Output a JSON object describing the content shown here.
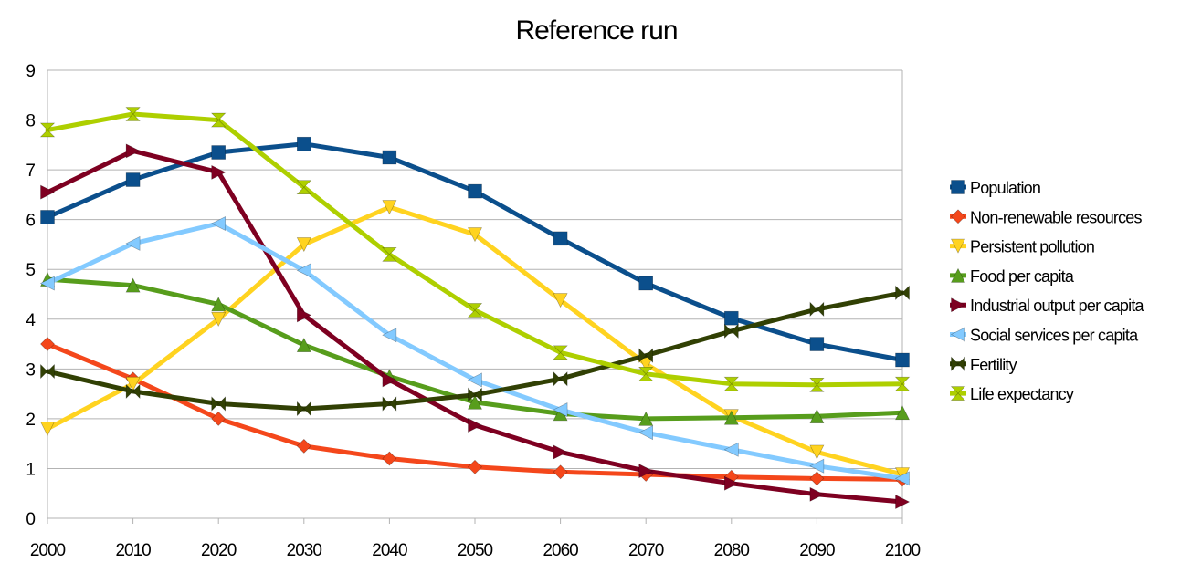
{
  "chart_data": {
    "type": "line",
    "title": "Reference run",
    "xlabel": "",
    "ylabel": "",
    "x": [
      2000,
      2010,
      2020,
      2030,
      2040,
      2050,
      2060,
      2070,
      2080,
      2090,
      2100
    ],
    "ylim": [
      0,
      9
    ],
    "yticks": [
      0,
      1,
      2,
      3,
      4,
      5,
      6,
      7,
      8,
      9
    ],
    "grid": "horizontal",
    "legend_position": "right",
    "series": [
      {
        "name": "Population",
        "color": "#0B4F8C",
        "marker": "square",
        "values": [
          6.05,
          6.8,
          7.35,
          7.52,
          7.25,
          6.57,
          5.62,
          4.72,
          4.02,
          3.5,
          3.18
        ]
      },
      {
        "name": "Non-renewable resources",
        "color": "#F4471B",
        "marker": "diamond",
        "values": [
          3.5,
          2.8,
          2.0,
          1.45,
          1.2,
          1.03,
          0.93,
          0.88,
          0.83,
          0.8,
          0.78
        ]
      },
      {
        "name": "Persistent pollution",
        "color": "#FFD320",
        "marker": "triangle-down",
        "values": [
          1.8,
          2.7,
          4.0,
          5.5,
          6.25,
          5.7,
          4.38,
          3.1,
          2.05,
          1.33,
          0.88
        ]
      },
      {
        "name": "Food per capita",
        "color": "#579D1C",
        "marker": "triangle-up",
        "values": [
          4.8,
          4.68,
          4.3,
          3.48,
          2.85,
          2.33,
          2.1,
          2.0,
          2.02,
          2.05,
          2.12
        ]
      },
      {
        "name": "Industrial output per capita",
        "color": "#7E0021",
        "marker": "triangle-right",
        "values": [
          6.55,
          7.38,
          6.95,
          4.08,
          2.78,
          1.87,
          1.33,
          0.95,
          0.7,
          0.48,
          0.33
        ]
      },
      {
        "name": "Social services per capita",
        "color": "#83CAFF",
        "marker": "triangle-left",
        "values": [
          4.72,
          5.52,
          5.92,
          4.98,
          3.68,
          2.78,
          2.18,
          1.72,
          1.38,
          1.05,
          0.8
        ]
      },
      {
        "name": "Fertility",
        "color": "#314004",
        "marker": "bowtie",
        "values": [
          2.95,
          2.55,
          2.3,
          2.2,
          2.3,
          2.48,
          2.8,
          3.27,
          3.76,
          4.2,
          4.53
        ]
      },
      {
        "name": "Life expectancy",
        "color": "#AECF00",
        "marker": "hourglass",
        "values": [
          7.8,
          8.12,
          8.0,
          6.65,
          5.3,
          4.18,
          3.33,
          2.9,
          2.7,
          2.68,
          2.7
        ]
      }
    ]
  }
}
